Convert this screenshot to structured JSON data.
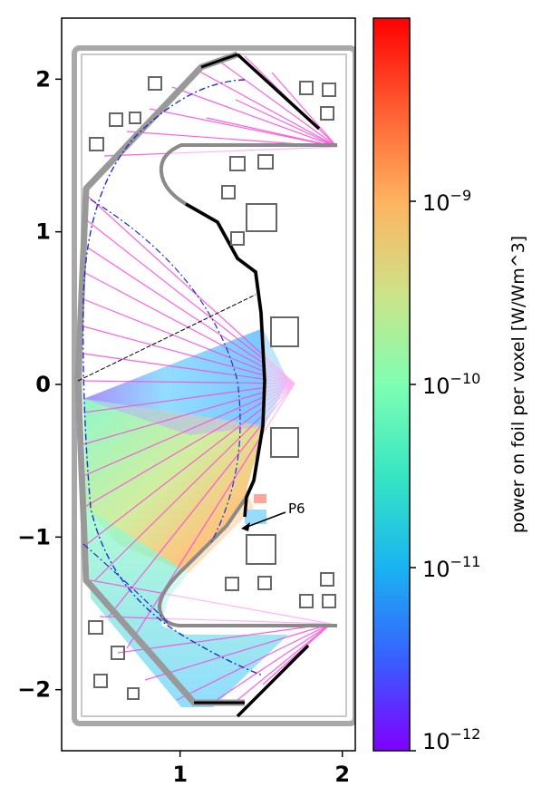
{
  "chart_data": {
    "type": "heatmap",
    "description_free": true,
    "axes": {
      "xlim": [
        0.27,
        2.08
      ],
      "ylim": [
        -2.4,
        2.4
      ],
      "xticks": [
        {
          "value": 1,
          "label": "1"
        },
        {
          "value": 2,
          "label": "2"
        }
      ],
      "yticks": [
        {
          "value": 2,
          "label": "2"
        },
        {
          "value": 1,
          "label": "1"
        },
        {
          "value": 0,
          "label": "0"
        },
        {
          "value": -1,
          "label": "−1"
        },
        {
          "value": -2,
          "label": "−2"
        }
      ],
      "grid": false
    },
    "colorbar": {
      "label": "power on foil per voxel [W/Wm^3]",
      "scale": "log",
      "colormap": "rainbow",
      "range": [
        1e-12,
        1e-08
      ],
      "ticks": [
        {
          "value": 1e-09,
          "label_base": "10",
          "label_exp": "−9"
        },
        {
          "value": 1e-10,
          "label_base": "10",
          "label_exp": "−10"
        },
        {
          "value": 1e-11,
          "label_base": "10",
          "label_exp": "−11"
        },
        {
          "value": 1e-12,
          "label_base": "10",
          "label_exp": "−12"
        }
      ]
    },
    "annotations": [
      {
        "text": "P6",
        "x": 1.35,
        "y": -0.9,
        "text_x": 1.67,
        "text_y": -0.8
      }
    ]
  },
  "colors": {
    "axis": "#000000",
    "vessel": "#a8a8a8",
    "separatrix": "#1f2fd0",
    "wall": "#000000",
    "lines_of_sight": "#ff44dd",
    "colormap_stops": [
      "#8000ff",
      "#3a5cff",
      "#1ab3f1",
      "#34e4c3",
      "#7ffeb3",
      "#cbe48a",
      "#ffb360",
      "#ff5a30",
      "#ff0000"
    ]
  }
}
